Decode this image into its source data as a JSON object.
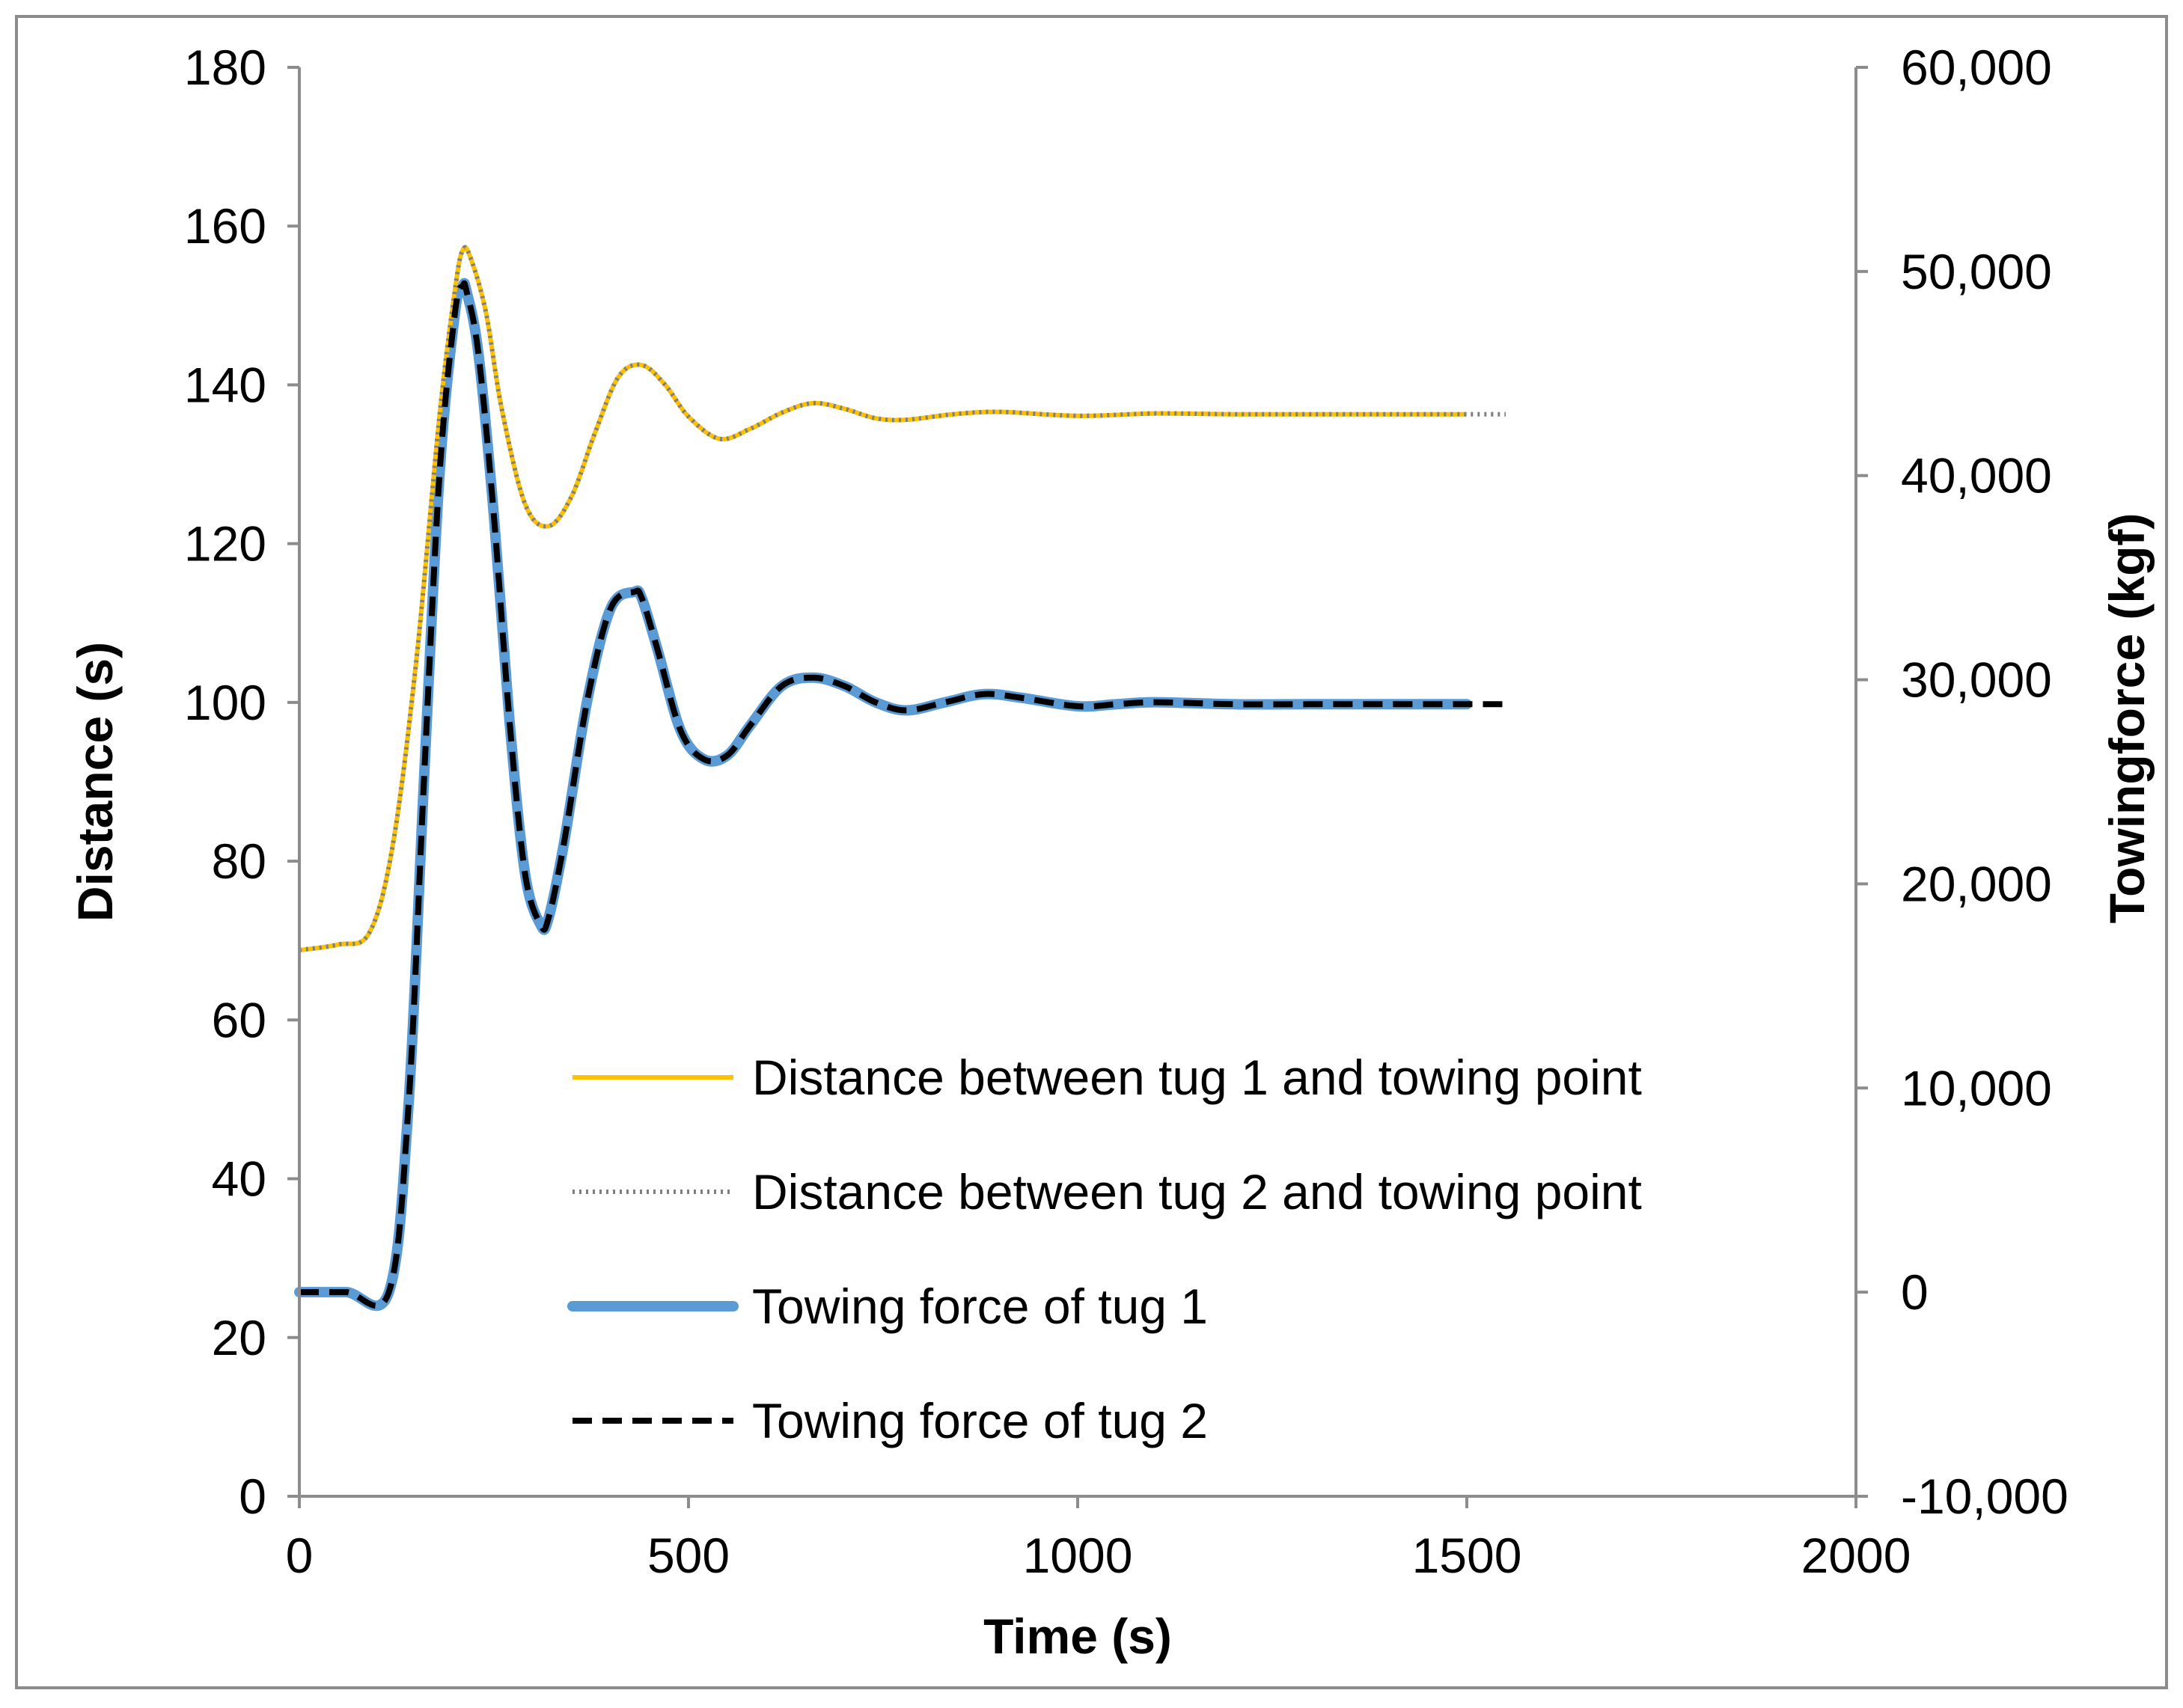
{
  "chart_data": {
    "type": "line",
    "title": "",
    "xlabel": "Time (s)",
    "ylabel": "Distance (s)",
    "y2label": "Towingforce (kgf)",
    "xlim": [
      0,
      2000
    ],
    "ylim": [
      0,
      180
    ],
    "y2lim": [
      -10000,
      60000
    ],
    "x_ticks": [
      "0",
      "500",
      "1000",
      "1500",
      "2000"
    ],
    "y_ticks": [
      "0",
      "20",
      "40",
      "60",
      "80",
      "100",
      "120",
      "140",
      "160",
      "180"
    ],
    "y2_ticks": [
      "-10,000",
      "0",
      "10,000",
      "20,000",
      "30,000",
      "40,000",
      "50,000",
      "60,000"
    ],
    "grid": false,
    "legend_position": "lower-right inside plot",
    "series": [
      {
        "name": "Distance between tug 1 and towing point",
        "axis": "left",
        "color": "#FFC000",
        "style": "solid",
        "x": [
          0,
          50,
          90,
          120,
          150,
          180,
          200,
          210,
          220,
          240,
          260,
          290,
          320,
          350,
          380,
          410,
          440,
          470,
          500,
          540,
          580,
          620,
          660,
          700,
          740,
          780,
          840,
          900,
          1000,
          1100,
          1200,
          1300,
          1400,
          1500
        ],
        "values": [
          68.8,
          69.5,
          71,
          82,
          105,
          136,
          152,
          157,
          156,
          149,
          137,
          125,
          122.2,
          126,
          134,
          141,
          142.5,
          140,
          136,
          133.2,
          134.5,
          136.5,
          137.7,
          137,
          135.8,
          135.6,
          136.3,
          136.6,
          136.1,
          136.4,
          136.3,
          136.3,
          136.3,
          136.3
        ]
      },
      {
        "name": "Distance between tug 2 and towing point",
        "axis": "left",
        "color": "#7F7F7F",
        "style": "dotted",
        "x": [
          0,
          50,
          90,
          120,
          150,
          180,
          200,
          210,
          220,
          240,
          260,
          290,
          320,
          350,
          380,
          410,
          440,
          470,
          500,
          540,
          580,
          620,
          660,
          700,
          740,
          780,
          840,
          900,
          1000,
          1100,
          1200,
          1300,
          1400,
          1500,
          1550
        ],
        "values": [
          68.8,
          69.5,
          71,
          82,
          105,
          136,
          152,
          157,
          156,
          149,
          137,
          125,
          122.2,
          126,
          134,
          141,
          142.5,
          140,
          136,
          133.2,
          134.5,
          136.5,
          137.7,
          137,
          135.8,
          135.6,
          136.3,
          136.6,
          136.1,
          136.4,
          136.3,
          136.3,
          136.3,
          136.3,
          136.3
        ]
      },
      {
        "name": "Towing force of tug 1",
        "axis": "right",
        "color": "#5B9BD5",
        "style": "solid-thick",
        "x": [
          0,
          60,
          115,
          140,
          160,
          180,
          200,
          210,
          215,
          230,
          250,
          270,
          290,
          310,
          320,
          340,
          370,
          400,
          430,
          440,
          460,
          490,
          520,
          550,
          580,
          620,
          660,
          700,
          740,
          780,
          830,
          880,
          930,
          1000,
          1050,
          1100,
          1200,
          1300,
          1400,
          1500
        ],
        "values": [
          0,
          0,
          0,
          9000,
          25000,
          40000,
          48000,
          49300,
          49000,
          46000,
          38000,
          28000,
          20500,
          18000,
          18300,
          22000,
          29000,
          33500,
          34300,
          34000,
          31500,
          27500,
          26100,
          26300,
          27800,
          29700,
          30100,
          29700,
          28900,
          28500,
          28900,
          29300,
          29100,
          28700,
          28800,
          28900,
          28800,
          28800,
          28800,
          28800
        ]
      },
      {
        "name": "Towing force of tug 2",
        "axis": "right",
        "color": "#000000",
        "style": "dashed",
        "x": [
          0,
          60,
          115,
          140,
          160,
          180,
          200,
          210,
          215,
          230,
          250,
          270,
          290,
          310,
          320,
          340,
          370,
          400,
          430,
          440,
          460,
          490,
          520,
          550,
          580,
          620,
          660,
          700,
          740,
          780,
          830,
          880,
          930,
          1000,
          1050,
          1100,
          1200,
          1300,
          1400,
          1500,
          1550
        ],
        "values": [
          0,
          0,
          0,
          9000,
          25000,
          40000,
          48000,
          49300,
          49000,
          46000,
          38000,
          28000,
          20500,
          18000,
          18300,
          22000,
          29000,
          33500,
          34300,
          34000,
          31500,
          27500,
          26100,
          26300,
          27800,
          29700,
          30100,
          29700,
          28900,
          28500,
          28900,
          29300,
          29100,
          28700,
          28800,
          28900,
          28800,
          28800,
          28800,
          28800,
          28800
        ]
      }
    ]
  }
}
